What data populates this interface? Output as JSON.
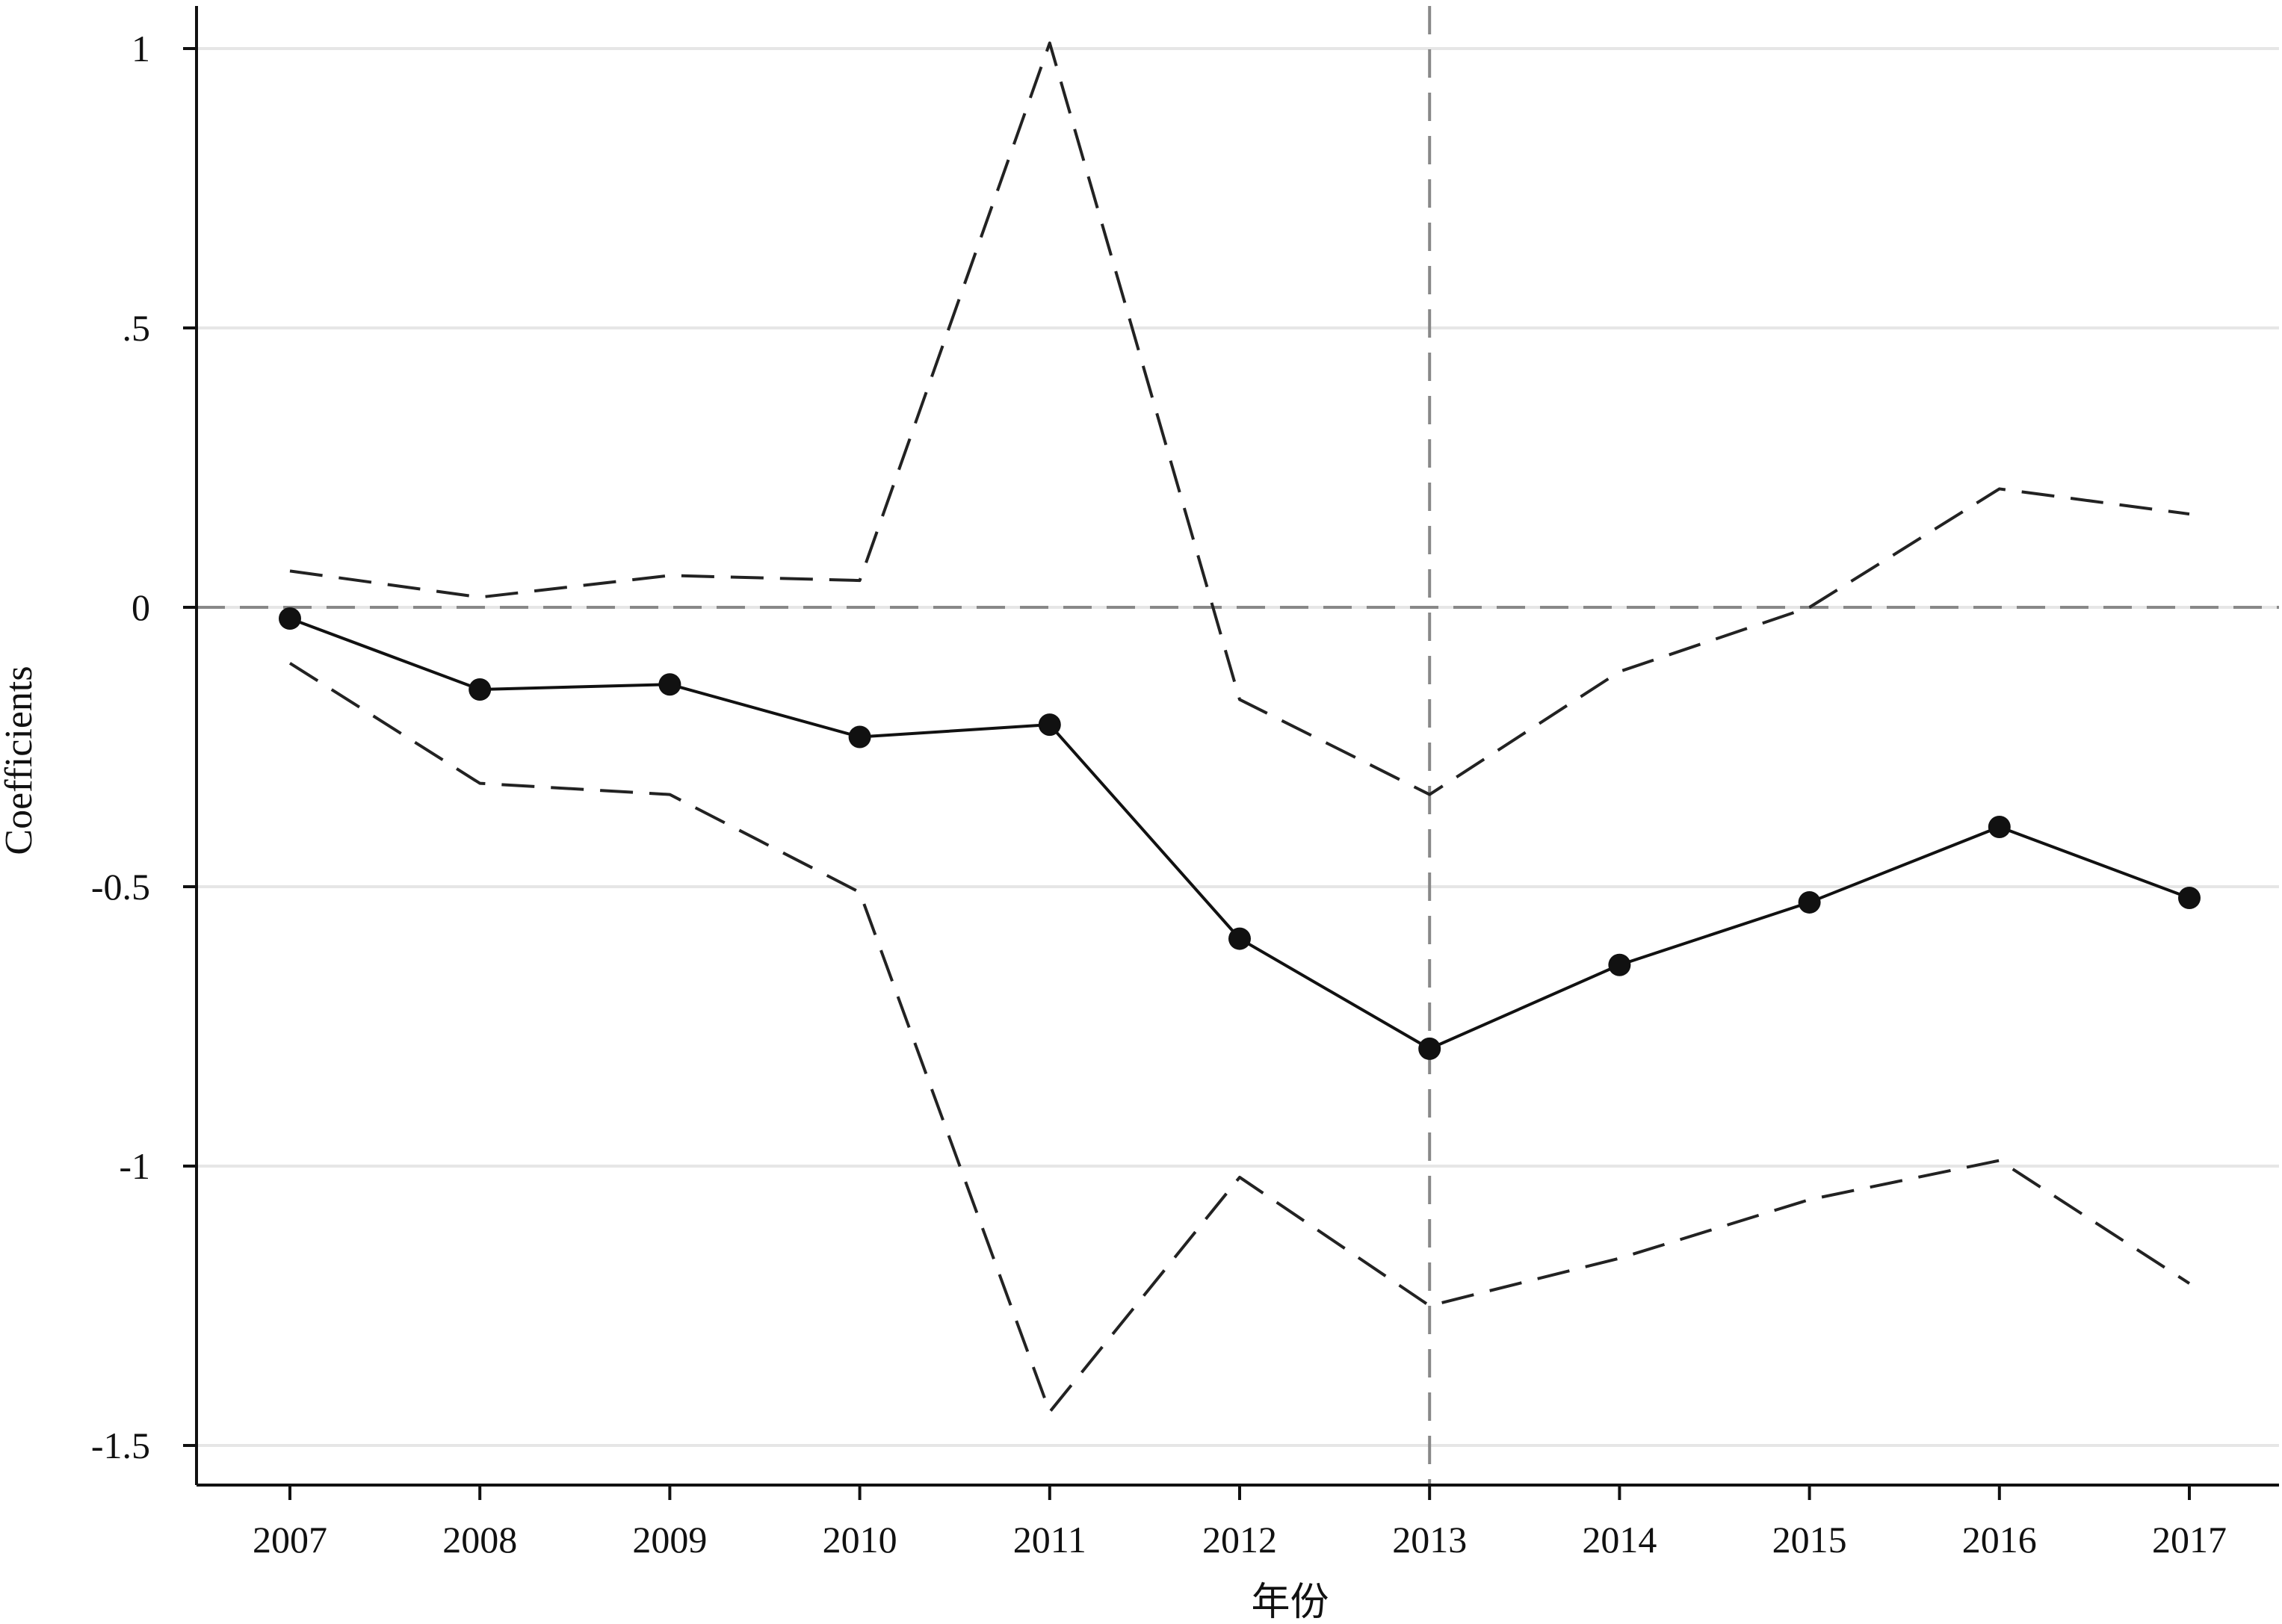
{
  "chart_data": {
    "type": "line",
    "xlabel": "年份",
    "ylabel": "Coefficients",
    "categories": [
      "2007",
      "2008",
      "2009",
      "2010",
      "2011",
      "2012",
      "2013",
      "2014",
      "2015",
      "2016",
      "2017"
    ],
    "ylim": [
      -1.57,
      1.08
    ],
    "yticks": [
      {
        "value": 1,
        "label": "1"
      },
      {
        "value": 0.5,
        "label": ".5"
      },
      {
        "value": 0,
        "label": "0"
      },
      {
        "value": -0.5,
        "label": "-0.5"
      },
      {
        "value": -1,
        "label": "-1"
      },
      {
        "value": -1.5,
        "label": "-1.5"
      }
    ],
    "grid": "horizontal",
    "reference_lines": {
      "y": 0,
      "x": "2013"
    },
    "series": [
      {
        "role": "estimate",
        "style": "solid-markers",
        "values": [
          -0.02,
          -0.147,
          -0.138,
          -0.232,
          -0.21,
          -0.593,
          -0.79,
          -0.64,
          -0.528,
          -0.393,
          -0.52
        ]
      },
      {
        "role": "upper-ci",
        "style": "dashed",
        "values": [
          0.065,
          0.018,
          0.057,
          0.048,
          1.01,
          -0.165,
          -0.335,
          -0.115,
          0.0,
          0.212,
          0.167
        ]
      },
      {
        "role": "lower-ci",
        "style": "dashed",
        "values": [
          -0.1,
          -0.315,
          -0.335,
          -0.51,
          -1.44,
          -1.02,
          -1.25,
          -1.165,
          -1.06,
          -0.99,
          -1.21
        ]
      }
    ],
    "colors": {
      "estimate": "#111111",
      "ci": "#222222",
      "reference": "#888888",
      "grid": "#e6e6e6",
      "axis": "#111111"
    }
  }
}
